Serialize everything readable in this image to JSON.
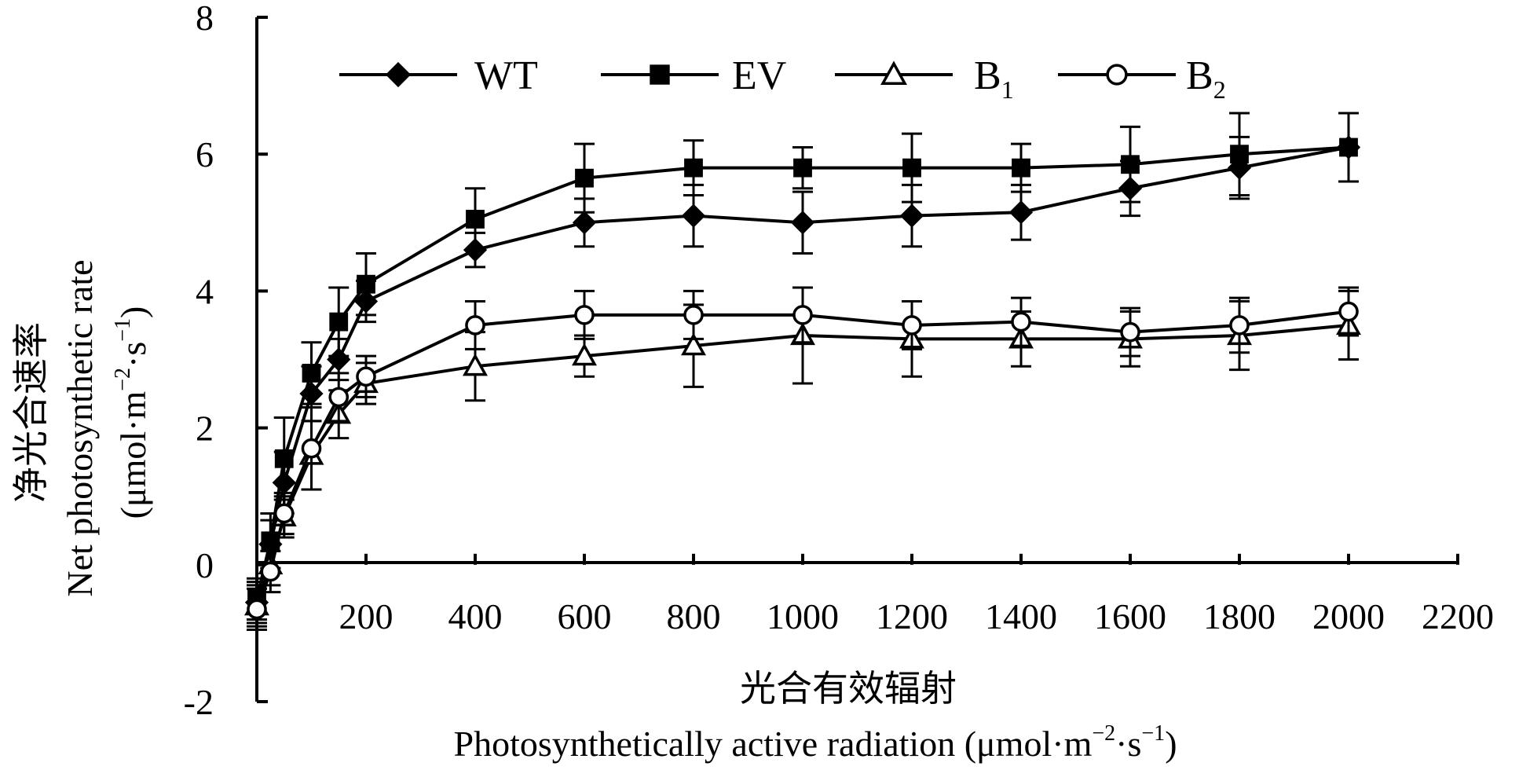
{
  "chart_data": {
    "type": "line",
    "x_axis": {
      "label_cn": "光合有效辐射",
      "label_en": "Photosynthetically active radiation (μmol·m",
      "label_en_sup1": "−2",
      "label_en_mid": "·s",
      "label_en_sup2": "−1",
      "label_en_end": ")",
      "range": [
        0,
        2200
      ],
      "ticks": [
        200,
        400,
        600,
        800,
        1000,
        1200,
        1400,
        1600,
        1800,
        2000,
        2200
      ],
      "tick_labels": [
        "200",
        "400",
        "600",
        "800",
        "1000",
        "1200",
        "1400",
        "1600",
        "1800",
        "2000",
        "2200"
      ]
    },
    "y_axis": {
      "label_cn": "净光合速率",
      "label_en": "Net  photosynthetic rate",
      "unit_open": "(μmol·m",
      "unit_sup1": "−2",
      "unit_mid": "·s",
      "unit_sup2": "−1",
      "unit_close": ")",
      "range": [
        -2,
        8
      ],
      "ticks": [
        -2,
        0,
        2,
        4,
        6,
        8
      ],
      "tick_labels": [
        "-2",
        "0",
        "2",
        "4",
        "6",
        "8"
      ]
    },
    "legend": {
      "placement": "top"
    },
    "x": [
      0,
      25,
      50,
      100,
      150,
      200,
      400,
      600,
      800,
      1000,
      1200,
      1400,
      1600,
      1800,
      2000
    ],
    "series": [
      {
        "name": "WT",
        "name_sub": "",
        "marker": "diamond",
        "filled": true,
        "values": [
          -0.55,
          0.3,
          1.2,
          2.5,
          3.0,
          3.85,
          4.6,
          5.0,
          5.1,
          5.0,
          5.1,
          5.15,
          5.5,
          5.8,
          6.1
        ],
        "errors": [
          0.3,
          0.35,
          0.45,
          0.4,
          0.3,
          0.3,
          0.25,
          0.35,
          0.45,
          0.45,
          0.45,
          0.4,
          0.4,
          0.45,
          0.5
        ]
      },
      {
        "name": "EV",
        "name_sub": "",
        "marker": "square",
        "filled": true,
        "values": [
          -0.5,
          0.35,
          1.55,
          2.8,
          3.55,
          4.1,
          5.05,
          5.65,
          5.8,
          5.8,
          5.8,
          5.8,
          5.85,
          6.0,
          6.1
        ],
        "errors": [
          0.3,
          0.4,
          0.6,
          0.45,
          0.5,
          0.45,
          0.45,
          0.5,
          0.4,
          0.3,
          0.5,
          0.35,
          0.55,
          0.6,
          0.5
        ]
      },
      {
        "name": "B",
        "name_sub": "1",
        "marker": "triangle",
        "filled": false,
        "values": [
          -0.6,
          0.0,
          0.7,
          1.6,
          2.2,
          2.65,
          2.9,
          3.05,
          3.2,
          3.35,
          3.3,
          3.3,
          3.3,
          3.35,
          3.5
        ],
        "errors": [
          0.3,
          0.3,
          0.3,
          0.5,
          0.35,
          0.3,
          0.5,
          0.3,
          0.6,
          0.7,
          0.55,
          0.4,
          0.4,
          0.5,
          0.5
        ]
      },
      {
        "name": "B",
        "name_sub": "2",
        "marker": "circle",
        "filled": false,
        "values": [
          -0.65,
          -0.1,
          0.75,
          1.7,
          2.45,
          2.75,
          3.5,
          3.65,
          3.65,
          3.65,
          3.5,
          3.55,
          3.4,
          3.5,
          3.7
        ],
        "errors": [
          0.3,
          0.3,
          0.3,
          0.6,
          0.35,
          0.3,
          0.35,
          0.35,
          0.35,
          0.4,
          0.35,
          0.35,
          0.35,
          0.4,
          0.35
        ]
      }
    ]
  }
}
